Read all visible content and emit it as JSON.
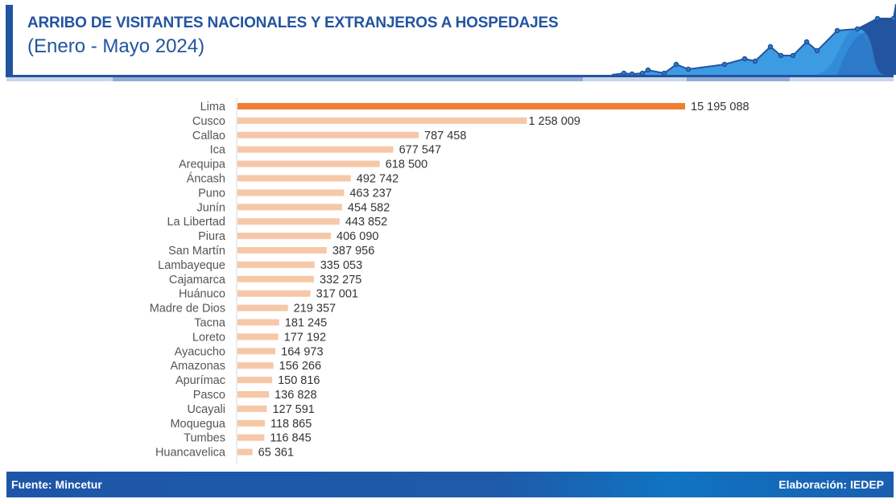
{
  "header": {
    "title": "ARRIBO DE VISITANTES NACIONALES Y EXTRANJEROS A HOSPEDAJES",
    "subtitle": "(Enero - Mayo 2024)"
  },
  "footer": {
    "source": "Fuente: Mincetur",
    "credit": "Elaboración: IEDEP"
  },
  "colors": {
    "brand": "#2354a0",
    "highlight_bar": "#ef7f33",
    "bar": "#f6c8a8"
  },
  "chart_data": {
    "type": "bar",
    "orientation": "horizontal",
    "title": "ARRIBO DE VISITANTES NACIONALES Y EXTRANJEROS A HOSPEDAJES",
    "subtitle": "(Enero - Mayo 2024)",
    "xlabel": "",
    "ylabel": "",
    "grid": false,
    "axis_break_on": "Lima",
    "categories": [
      "Lima",
      "Cusco",
      "Callao",
      "Ica",
      "Arequipa",
      "Áncash",
      "Puno",
      "Junín",
      "La Libertad",
      "Piura",
      "San Martín",
      "Lambayeque",
      "Cajamarca",
      "Huánuco",
      "Madre de Dios",
      "Tacna",
      "Loreto",
      "Ayacucho",
      "Amazonas",
      "Apurímac",
      "Pasco",
      "Ucayali",
      "Moquegua",
      "Tumbes",
      "Huancavelica"
    ],
    "values": [
      15195088,
      1258009,
      787458,
      677547,
      618500,
      492742,
      463237,
      454582,
      443852,
      406090,
      387956,
      335053,
      332275,
      317001,
      219357,
      181245,
      177192,
      164973,
      156266,
      150816,
      136828,
      127591,
      118865,
      116845,
      65361
    ],
    "labels": [
      "15 195 088",
      "1 258 009",
      "787 458",
      "677 547",
      "618 500",
      "492 742",
      "463 237",
      "454 582",
      "443 852",
      "406 090",
      "387 956",
      "335 053",
      "332 275",
      "317 001",
      "219 357",
      "181 245",
      "177 192",
      "164 973",
      "156 266",
      "150 816",
      "136 828",
      "127 591",
      "118 865",
      "116 845",
      "65 361"
    ],
    "highlight": "Lima"
  }
}
